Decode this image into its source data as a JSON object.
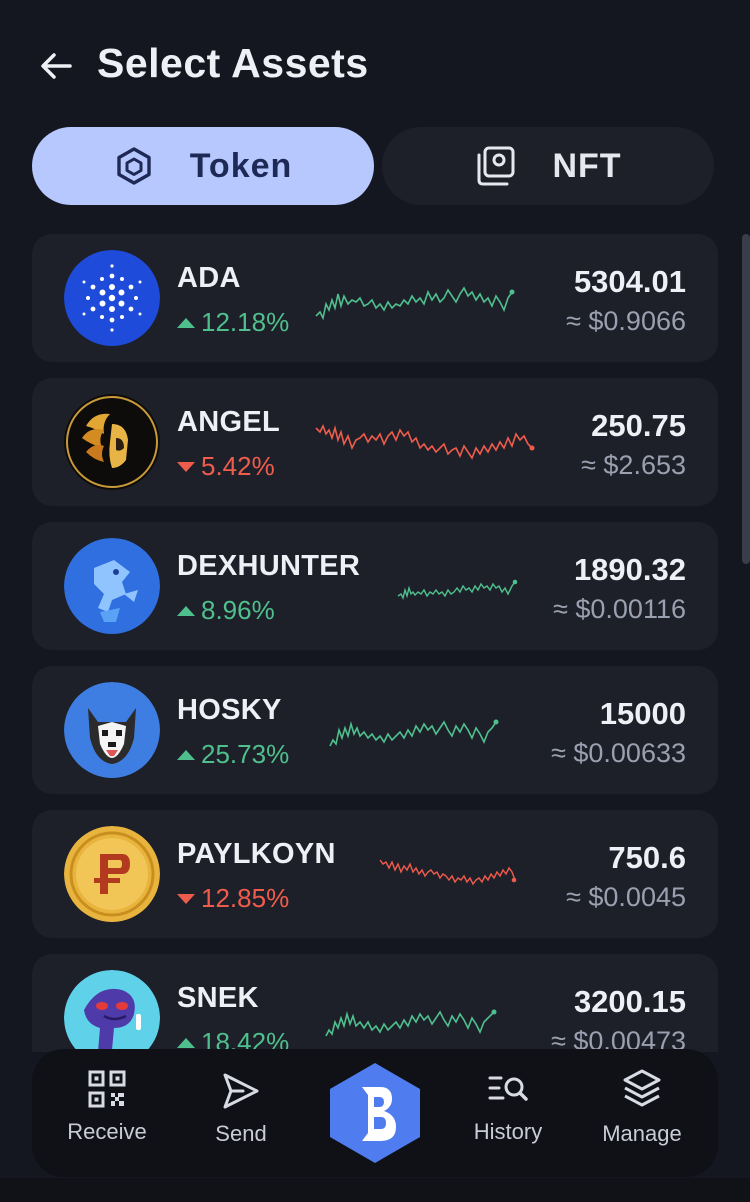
{
  "header": {
    "title": "Select Assets"
  },
  "tabs": [
    {
      "label": "Token",
      "active": true
    },
    {
      "label": "NFT",
      "active": false
    }
  ],
  "tokens": [
    {
      "symbol": "ADA",
      "change": "12.18%",
      "direction": "up",
      "amount": "5304.01",
      "usd": "≈ $0.9066",
      "logo": "cardano-logo"
    },
    {
      "symbol": "ANGEL",
      "change": "5.42%",
      "direction": "down",
      "amount": "250.75",
      "usd": "≈ $2.653",
      "logo": "angel-logo"
    },
    {
      "symbol": "DEXHUNTER",
      "change": "8.96%",
      "direction": "up",
      "amount": "1890.32",
      "usd": "≈ $0.00116",
      "logo": "dexhunter-logo"
    },
    {
      "symbol": "HOSKY",
      "change": "25.73%",
      "direction": "up",
      "amount": "15000",
      "usd": "≈ $0.00633",
      "logo": "hosky-logo"
    },
    {
      "symbol": "PAYLKOYN",
      "change": "12.85%",
      "direction": "down",
      "amount": "750.6",
      "usd": "≈ $0.0045",
      "logo": "paylkoyn-logo"
    },
    {
      "symbol": "SNEK",
      "change": "18.42%",
      "direction": "up",
      "amount": "3200.15",
      "usd": "≈ $0.00473",
      "logo": "snek-logo"
    }
  ],
  "nav": {
    "receive": "Receive",
    "send": "Send",
    "history": "History",
    "manage": "Manage"
  },
  "colors": {
    "background": "#14171f",
    "card": "#1d2029",
    "accent": "#b7c8ff",
    "up": "#4fc08d",
    "down": "#ef5c4c",
    "brand": "#4f7df0"
  },
  "icons": [
    "back-arrow-icon",
    "token-cube-icon",
    "nft-gallery-icon",
    "qr-code-icon",
    "send-icon",
    "history-search-icon",
    "layers-icon",
    "brand-logo"
  ]
}
